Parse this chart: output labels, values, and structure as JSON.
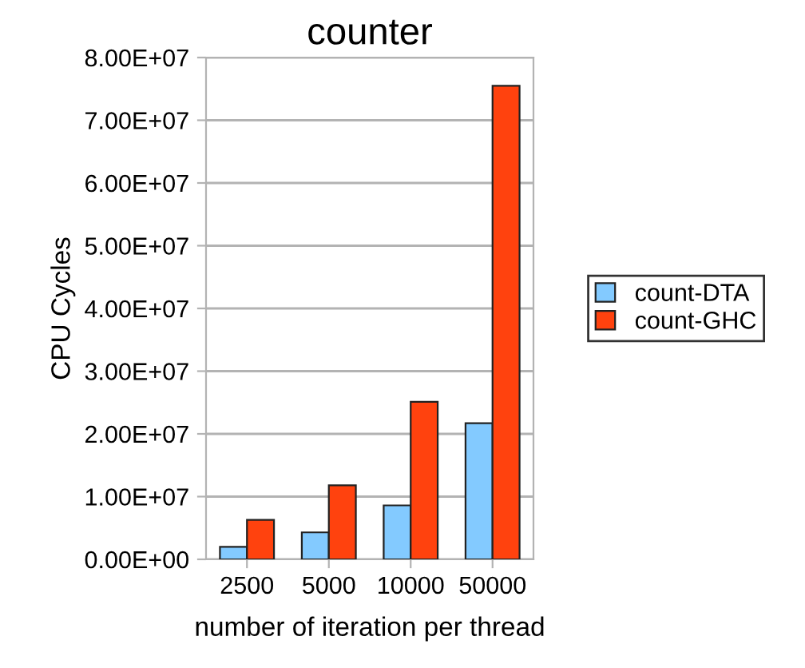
{
  "chart_data": {
    "type": "bar",
    "title": "counter",
    "xlabel": "number of iteration per thread",
    "ylabel": "CPU Cycles",
    "categories": [
      "2500",
      "5000",
      "10000",
      "50000"
    ],
    "series": [
      {
        "name": "count-DTA",
        "color": "#83caff",
        "values": [
          2000000,
          4300000,
          8600000,
          21700000
        ]
      },
      {
        "name": "count-GHC",
        "color": "#ff420e",
        "values": [
          6300000,
          11800000,
          25100000,
          75500000
        ]
      }
    ],
    "ylim": [
      0,
      80000000
    ],
    "yticks": [
      {
        "value": 0,
        "label": "0.00E+00"
      },
      {
        "value": 10000000,
        "label": "1.00E+07"
      },
      {
        "value": 20000000,
        "label": "2.00E+07"
      },
      {
        "value": 30000000,
        "label": "3.00E+07"
      },
      {
        "value": 40000000,
        "label": "4.00E+07"
      },
      {
        "value": 50000000,
        "label": "5.00E+07"
      },
      {
        "value": 60000000,
        "label": "6.00E+07"
      },
      {
        "value": 70000000,
        "label": "7.00E+07"
      },
      {
        "value": 80000000,
        "label": "8.00E+07"
      }
    ],
    "grid": "y",
    "legend": "right"
  }
}
